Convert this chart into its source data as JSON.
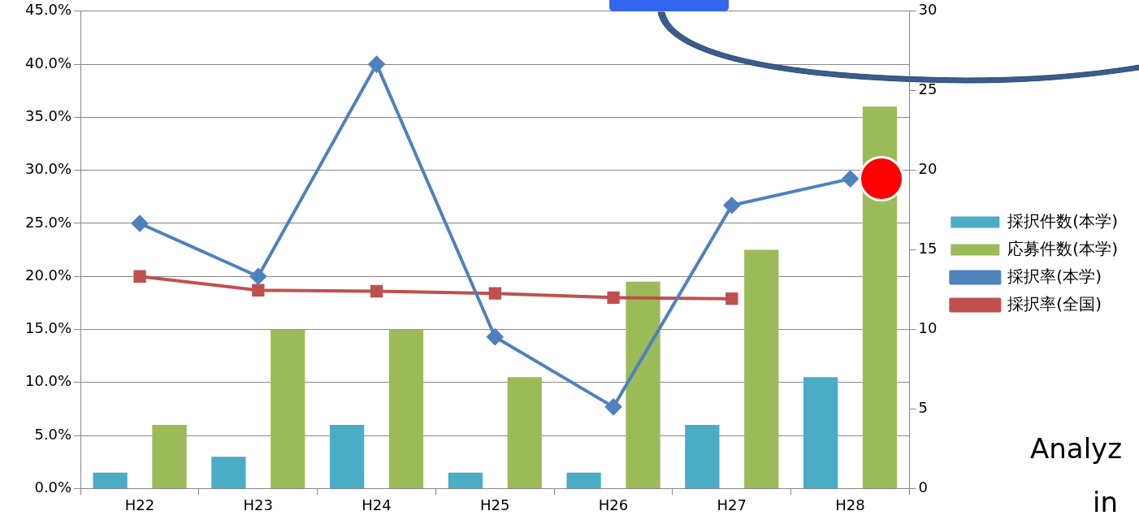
{
  "chart_data": {
    "type": "bar",
    "categories": [
      "H22",
      "H23",
      "H24",
      "H25",
      "H26",
      "H27",
      "H28"
    ],
    "series": [
      {
        "name": "採択件数(本学)",
        "color": "#4bacc6",
        "axis": "y2",
        "values": [
          1,
          2,
          4,
          1,
          1,
          4,
          7
        ]
      },
      {
        "name": "応募件数(本学)",
        "color": "#9bbb59",
        "axis": "y2",
        "values": [
          4,
          10,
          10,
          7,
          13,
          15,
          24
        ]
      },
      {
        "name": "採択率(本学)",
        "type": "line",
        "color": "#4f81bd",
        "marker": "diamond",
        "values": [
          25.0,
          20.0,
          40.0,
          14.3,
          7.7,
          26.7,
          29.2
        ]
      },
      {
        "name": "採択率(全国)",
        "type": "line",
        "color": "#c0504d",
        "marker": "square",
        "values": [
          20.0,
          18.7,
          18.6,
          18.4,
          18.0,
          17.9,
          null
        ]
      }
    ],
    "ylim": [
      0,
      45
    ],
    "yticks": [
      {
        "value": 0,
        "label": "0.0%"
      },
      {
        "value": 5,
        "label": "5.0%"
      },
      {
        "value": 10,
        "label": "10.0%"
      },
      {
        "value": 15,
        "label": "15.0%"
      },
      {
        "value": 20,
        "label": "20.0%"
      },
      {
        "value": 25,
        "label": "25.0%"
      },
      {
        "value": 30,
        "label": "30.0%"
      },
      {
        "value": 35,
        "label": "35.0%"
      },
      {
        "value": 40,
        "label": "40.0%"
      },
      {
        "value": 45,
        "label": "45.0%"
      }
    ],
    "y2lim": [
      0,
      30
    ],
    "y2ticks": [
      0,
      5,
      10,
      15,
      20,
      25,
      30
    ],
    "grid": "y",
    "legend": "right",
    "annotations": [
      "Analyz",
      "in"
    ]
  }
}
